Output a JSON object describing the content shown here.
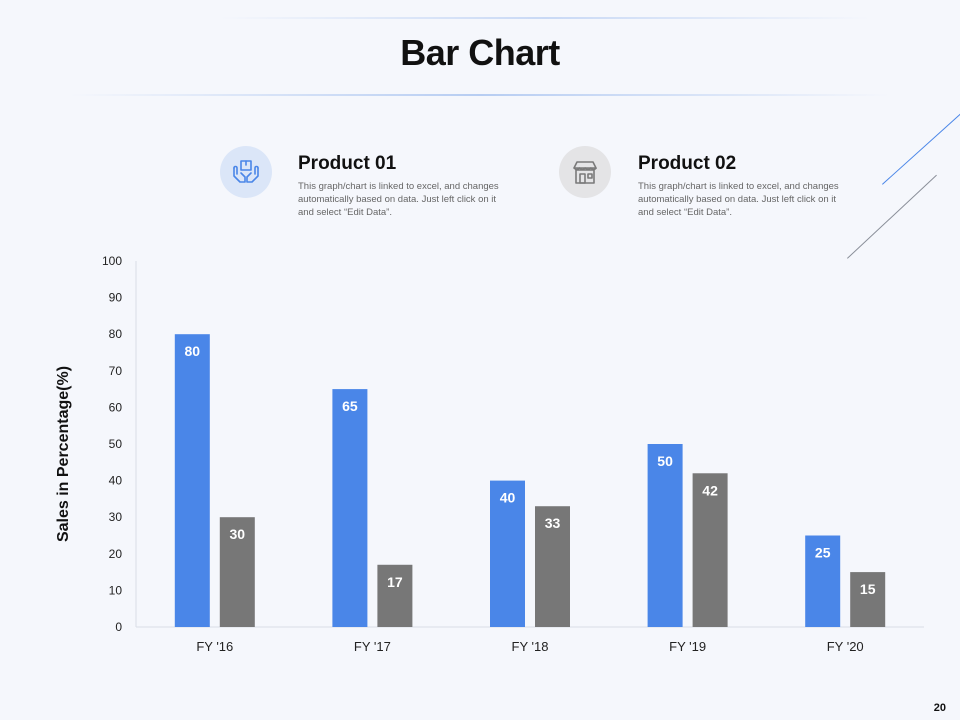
{
  "page": {
    "title": "Bar Chart",
    "number": "20"
  },
  "legend": [
    {
      "title": "Product 01",
      "desc": "This graph/chart is linked to excel, and changes automatically based on data. Just left click on it and select “Edit Data”.",
      "icon": "hands-box-icon",
      "color": "#4a86e8"
    },
    {
      "title": "Product 02",
      "desc": "This graph/chart is linked to excel, and changes automatically based on data. Just left click on it and select “Edit Data”.",
      "icon": "storefront-icon",
      "color": "#777777"
    }
  ],
  "chart_data": {
    "type": "bar",
    "title": "Bar Chart",
    "xlabel": "",
    "ylabel": "Sales in Percentage(%)",
    "ylim": [
      0,
      100
    ],
    "yticks": [
      0,
      10,
      20,
      30,
      40,
      50,
      60,
      70,
      80,
      90,
      100
    ],
    "categories": [
      "FY '16",
      "FY '17",
      "FY '18",
      "FY '19",
      "FY '20"
    ],
    "series": [
      {
        "name": "Product 01",
        "color": "#4a86e8",
        "values": [
          80,
          65,
          40,
          50,
          25
        ]
      },
      {
        "name": "Product 02",
        "color": "#777777",
        "values": [
          30,
          17,
          33,
          42,
          15
        ]
      }
    ],
    "grid": false,
    "data_labels": true
  }
}
